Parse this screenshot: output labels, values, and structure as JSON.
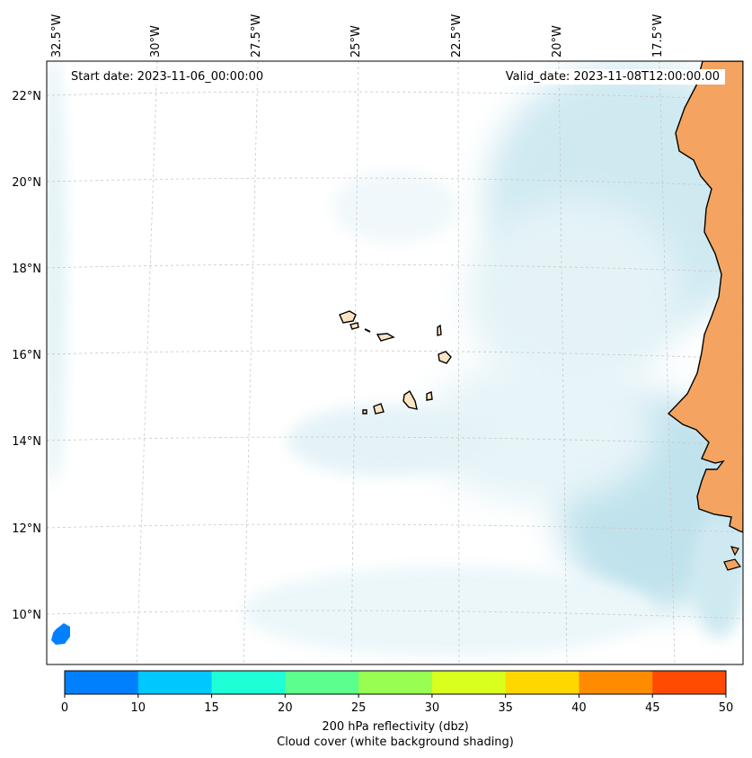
{
  "map": {
    "start_date": "Start date: 2023-11-06_00:00:00",
    "valid_date": "Valid_date: 2023-11-08T12:00:00.00",
    "lon_labels": [
      "32.5°W",
      "30°W",
      "27.5°W",
      "25°W",
      "22.5°W",
      "20°W",
      "17.5°W"
    ],
    "lat_labels": [
      "22°N",
      "20°N",
      "18°N",
      "16°N",
      "14°N",
      "12°N",
      "10°N"
    ]
  },
  "colorbar": {
    "title": "200 hPa reflectivity (dbz)",
    "subtitle": "Cloud cover (white background shading)",
    "ticks": [
      "0",
      "10",
      "15",
      "20",
      "25",
      "30",
      "35",
      "40",
      "45",
      "50"
    ],
    "colors": [
      "#0080ff",
      "#00c8ff",
      "#1effd8",
      "#5cff8c",
      "#98ff52",
      "#d8ff1e",
      "#ffd700",
      "#ff8c00",
      "#ff4a00"
    ]
  },
  "colors": {
    "land": "#f4a460",
    "cloud": "#a8d8e6",
    "echo": "#0080ff",
    "coast": "#000000"
  }
}
